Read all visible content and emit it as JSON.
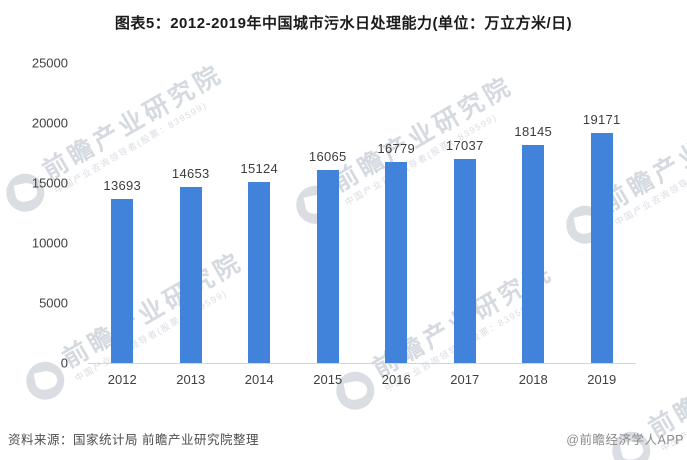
{
  "title": "图表5：2012-2019年中国城市污水日处理能力(单位：万立方米/日)",
  "chart_data": {
    "type": "bar",
    "title": "图表5：2012-2019年中国城市污水日处理能力(单位：万立方米/日)",
    "categories": [
      "2012",
      "2013",
      "2014",
      "2015",
      "2016",
      "2017",
      "2018",
      "2019"
    ],
    "values": [
      13693,
      14653,
      15124,
      16065,
      16779,
      17037,
      18145,
      19171
    ],
    "xlabel": "",
    "ylabel": "",
    "ylim": [
      0,
      25000
    ],
    "yticks": [
      0,
      5000,
      10000,
      15000,
      20000,
      25000
    ],
    "grid": false,
    "legend": "none",
    "bar_color": "#4182DB",
    "value_labels": true
  },
  "watermark": {
    "text": "前瞻产业研究院",
    "subtext": "中国产业咨询领导者(股票：839599)"
  },
  "footer": {
    "source": "资料来源：国家统计局 前瞻产业研究院整理",
    "credit": "@前瞻经济学人APP"
  },
  "colors": {
    "bar": "#4182DB",
    "axis_line": "#D6D6D6",
    "text": "#404040",
    "watermark": "#B9C0CB"
  }
}
